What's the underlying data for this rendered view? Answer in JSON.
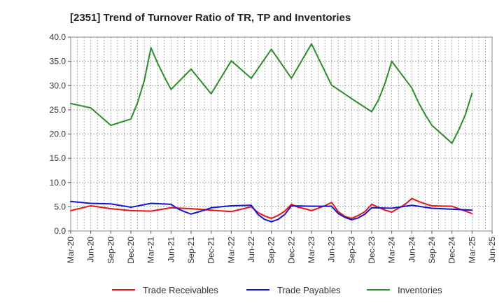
{
  "chart_data": {
    "type": "line",
    "title": "[2351]  Trend of Turnover Ratio of TR, TP and Inventories",
    "xlabel": "",
    "ylabel": "",
    "ylim": [
      0,
      40
    ],
    "yticks": [
      "0.0",
      "5.0",
      "10.0",
      "15.0",
      "20.0",
      "25.0",
      "30.0",
      "35.0",
      "40.0"
    ],
    "xtick_labels": [
      "Mar-20",
      "Jun-20",
      "Sep-20",
      "Dec-20",
      "Mar-21",
      "Jun-21",
      "Sep-21",
      "Dec-21",
      "Mar-22",
      "Jun-22",
      "Sep-22",
      "Dec-22",
      "Mar-23",
      "Jun-23",
      "Sep-23",
      "Dec-23",
      "Mar-24",
      "Jun-24",
      "Sep-24",
      "Dec-24",
      "Mar-25",
      "Jun-25"
    ],
    "grid": true,
    "legend_position": "bottom",
    "x": [
      "Mar-20",
      "Apr-20",
      "May-20",
      "Jun-20",
      "Jul-20",
      "Aug-20",
      "Sep-20",
      "Oct-20",
      "Nov-20",
      "Dec-20",
      "Jan-21",
      "Feb-21",
      "Mar-21",
      "Apr-21",
      "May-21",
      "Jun-21",
      "Jul-21",
      "Aug-21",
      "Sep-21",
      "Oct-21",
      "Nov-21",
      "Dec-21",
      "Jan-22",
      "Feb-22",
      "Mar-22",
      "Apr-22",
      "May-22",
      "Jun-22",
      "Jul-22",
      "Aug-22",
      "Sep-22",
      "Oct-22",
      "Nov-22",
      "Dec-22",
      "Jan-23",
      "Feb-23",
      "Mar-23",
      "Apr-23",
      "May-23",
      "Jun-23",
      "Jul-23",
      "Aug-23",
      "Sep-23",
      "Oct-23",
      "Nov-23",
      "Dec-23",
      "Jan-24",
      "Feb-24",
      "Mar-24",
      "Apr-24",
      "May-24",
      "Jun-24",
      "Jul-24",
      "Aug-24",
      "Sep-24",
      "Oct-24",
      "Nov-24",
      "Dec-24",
      "Jan-25",
      "Feb-25",
      "Mar-25"
    ],
    "series": [
      {
        "name": "Trade Receivables",
        "color": "#e8141a",
        "values": [
          {
            "x": "Mar-20",
            "y": 4.2
          },
          {
            "x": "Jun-20",
            "y": 5.2
          },
          {
            "x": "Sep-20",
            "y": 4.6
          },
          {
            "x": "Dec-20",
            "y": 4.2
          },
          {
            "x": "Mar-21",
            "y": 4.1
          },
          {
            "x": "Jun-21",
            "y": 4.8
          },
          {
            "x": "Sep-21",
            "y": 4.6
          },
          {
            "x": "Dec-21",
            "y": 4.3
          },
          {
            "x": "Mar-22",
            "y": 4.0
          },
          {
            "x": "Jun-22",
            "y": 5.0
          },
          {
            "x": "Jul-22",
            "y": 3.8
          },
          {
            "x": "Aug-22",
            "y": 3.1
          },
          {
            "x": "Sep-22",
            "y": 2.6
          },
          {
            "x": "Oct-22",
            "y": 3.2
          },
          {
            "x": "Nov-22",
            "y": 4.1
          },
          {
            "x": "Dec-22",
            "y": 5.5
          },
          {
            "x": "Jan-23",
            "y": 4.9
          },
          {
            "x": "Feb-23",
            "y": 4.6
          },
          {
            "x": "Mar-23",
            "y": 4.2
          },
          {
            "x": "Apr-23",
            "y": 4.7
          },
          {
            "x": "May-23",
            "y": 5.2
          },
          {
            "x": "Jun-23",
            "y": 5.9
          },
          {
            "x": "Jul-23",
            "y": 4.0
          },
          {
            "x": "Aug-23",
            "y": 3.0
          },
          {
            "x": "Sep-23",
            "y": 2.6
          },
          {
            "x": "Oct-23",
            "y": 3.2
          },
          {
            "x": "Nov-23",
            "y": 4.0
          },
          {
            "x": "Dec-23",
            "y": 5.5
          },
          {
            "x": "Jan-24",
            "y": 4.9
          },
          {
            "x": "Feb-24",
            "y": 4.3
          },
          {
            "x": "Mar-24",
            "y": 3.9
          },
          {
            "x": "Apr-24",
            "y": 4.7
          },
          {
            "x": "May-24",
            "y": 5.5
          },
          {
            "x": "Jun-24",
            "y": 6.7
          },
          {
            "x": "Jul-24",
            "y": 6.1
          },
          {
            "x": "Aug-24",
            "y": 5.6
          },
          {
            "x": "Sep-24",
            "y": 5.2
          },
          {
            "x": "Dec-24",
            "y": 5.1
          },
          {
            "x": "Jan-25",
            "y": 4.6
          },
          {
            "x": "Feb-25",
            "y": 4.1
          },
          {
            "x": "Mar-25",
            "y": 3.6
          }
        ]
      },
      {
        "name": "Trade Payables",
        "color": "#1414d2",
        "values": [
          {
            "x": "Mar-20",
            "y": 6.1
          },
          {
            "x": "Jun-20",
            "y": 5.7
          },
          {
            "x": "Sep-20",
            "y": 5.6
          },
          {
            "x": "Dec-20",
            "y": 4.9
          },
          {
            "x": "Mar-21",
            "y": 5.7
          },
          {
            "x": "Jun-21",
            "y": 5.5
          },
          {
            "x": "Jul-21",
            "y": 4.6
          },
          {
            "x": "Aug-21",
            "y": 4.0
          },
          {
            "x": "Sep-21",
            "y": 3.5
          },
          {
            "x": "Oct-21",
            "y": 3.9
          },
          {
            "x": "Nov-21",
            "y": 4.3
          },
          {
            "x": "Dec-21",
            "y": 4.8
          },
          {
            "x": "Mar-22",
            "y": 5.2
          },
          {
            "x": "Jun-22",
            "y": 5.3
          },
          {
            "x": "Jul-22",
            "y": 3.4
          },
          {
            "x": "Aug-22",
            "y": 2.4
          },
          {
            "x": "Sep-22",
            "y": 1.9
          },
          {
            "x": "Oct-22",
            "y": 2.4
          },
          {
            "x": "Nov-22",
            "y": 3.4
          },
          {
            "x": "Dec-22",
            "y": 5.2
          },
          {
            "x": "Mar-23",
            "y": 5.1
          },
          {
            "x": "Jun-23",
            "y": 5.1
          },
          {
            "x": "Jul-23",
            "y": 3.6
          },
          {
            "x": "Aug-23",
            "y": 2.8
          },
          {
            "x": "Sep-23",
            "y": 2.3
          },
          {
            "x": "Oct-23",
            "y": 2.7
          },
          {
            "x": "Nov-23",
            "y": 3.5
          },
          {
            "x": "Dec-23",
            "y": 4.8
          },
          {
            "x": "Mar-24",
            "y": 4.7
          },
          {
            "x": "Jun-24",
            "y": 5.3
          },
          {
            "x": "Sep-24",
            "y": 4.7
          },
          {
            "x": "Dec-24",
            "y": 4.5
          },
          {
            "x": "Mar-25",
            "y": 4.3
          }
        ]
      },
      {
        "name": "Inventories",
        "color": "#2c8c2c",
        "values": [
          {
            "x": "Mar-20",
            "y": 26.3
          },
          {
            "x": "Jun-20",
            "y": 25.4
          },
          {
            "x": "Sep-20",
            "y": 21.8
          },
          {
            "x": "Dec-20",
            "y": 23.1
          },
          {
            "x": "Jan-21",
            "y": 26.5
          },
          {
            "x": "Feb-21",
            "y": 31.0
          },
          {
            "x": "Mar-21",
            "y": 37.8
          },
          {
            "x": "Apr-21",
            "y": 34.6
          },
          {
            "x": "May-21",
            "y": 31.8
          },
          {
            "x": "Jun-21",
            "y": 29.2
          },
          {
            "x": "Sep-21",
            "y": 33.4
          },
          {
            "x": "Dec-21",
            "y": 28.3
          },
          {
            "x": "Mar-22",
            "y": 35.1
          },
          {
            "x": "Jun-22",
            "y": 31.5
          },
          {
            "x": "Sep-22",
            "y": 37.5
          },
          {
            "x": "Dec-22",
            "y": 31.5
          },
          {
            "x": "Mar-23",
            "y": 38.6
          },
          {
            "x": "Jun-23",
            "y": 30.1
          },
          {
            "x": "Sep-23",
            "y": 27.3
          },
          {
            "x": "Dec-23",
            "y": 24.6
          },
          {
            "x": "Jan-24",
            "y": 27.0
          },
          {
            "x": "Feb-24",
            "y": 30.5
          },
          {
            "x": "Mar-24",
            "y": 35.0
          },
          {
            "x": "Jun-24",
            "y": 29.5
          },
          {
            "x": "Jul-24",
            "y": 26.5
          },
          {
            "x": "Aug-24",
            "y": 24.0
          },
          {
            "x": "Sep-24",
            "y": 21.8
          },
          {
            "x": "Dec-24",
            "y": 18.1
          },
          {
            "x": "Jan-25",
            "y": 20.8
          },
          {
            "x": "Feb-25",
            "y": 24.0
          },
          {
            "x": "Mar-25",
            "y": 28.4
          }
        ]
      }
    ]
  }
}
